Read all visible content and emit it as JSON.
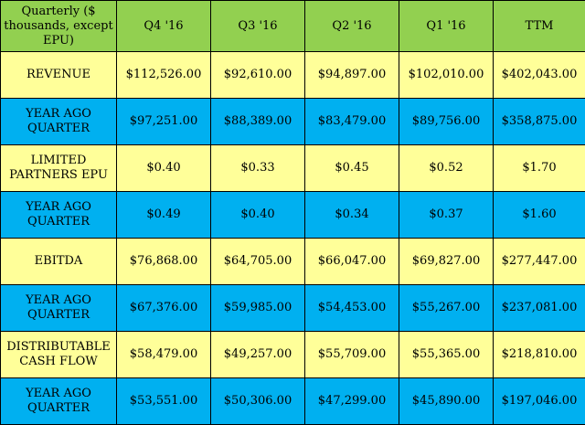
{
  "colors": {
    "header_bg": "#92d050",
    "yellow_row_bg": "#ffff99",
    "blue_row_bg": "#00b0f0",
    "border": "#000000"
  },
  "table": {
    "headers": [
      "Quarterly ($ thousands, except EPU)",
      "Q4 '16",
      "Q3 '16",
      "Q2 '16",
      "Q1 '16",
      "TTM"
    ],
    "rows": [
      {
        "label": "REVENUE",
        "color": "yellow",
        "values": [
          "$112,526.00",
          "$92,610.00",
          "$94,897.00",
          "$102,010.00",
          "$402,043.00"
        ]
      },
      {
        "label": "YEAR AGO QUARTER",
        "color": "blue",
        "values": [
          "$97,251.00",
          "$88,389.00",
          "$83,479.00",
          "$89,756.00",
          "$358,875.00"
        ]
      },
      {
        "label": "LIMITED PARTNERS EPU",
        "color": "yellow",
        "values": [
          "$0.40",
          "$0.33",
          "$0.45",
          "$0.52",
          "$1.70"
        ]
      },
      {
        "label": "YEAR AGO QUARTER",
        "color": "blue",
        "values": [
          "$0.49",
          "$0.40",
          "$0.34",
          "$0.37",
          "$1.60"
        ]
      },
      {
        "label": "EBITDA",
        "color": "yellow",
        "values": [
          "$76,868.00",
          "$64,705.00",
          "$66,047.00",
          "$69,827.00",
          "$277,447.00"
        ]
      },
      {
        "label": "YEAR AGO QUARTER",
        "color": "blue",
        "values": [
          "$67,376.00",
          "$59,985.00",
          "$54,453.00",
          "$55,267.00",
          "$237,081.00"
        ]
      },
      {
        "label": "DISTRIBUTABLE CASH FLOW",
        "color": "yellow",
        "values": [
          "$58,479.00",
          "$49,257.00",
          "$55,709.00",
          "$55,365.00",
          "$218,810.00"
        ]
      },
      {
        "label": "YEAR AGO QUARTER",
        "color": "blue",
        "values": [
          "$53,551.00",
          "$50,306.00",
          "$47,299.00",
          "$45,890.00",
          "$197,046.00"
        ]
      }
    ]
  }
}
